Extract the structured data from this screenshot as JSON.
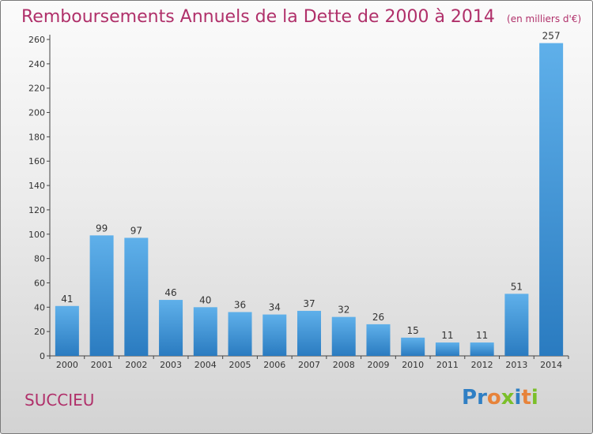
{
  "title": "Remboursements Annuels de la Dette de 2000 à 2014",
  "unit": "(en milliers d'€)",
  "commune": "SUCCIEU",
  "logo": {
    "letters": [
      "P",
      "r",
      "o",
      "x",
      "i",
      "t",
      "i"
    ]
  },
  "colors": {
    "title": "#b0306a",
    "bar_light": "#5fb0ea",
    "bar_dark": "#2a7bc0"
  },
  "chart_data": {
    "type": "bar",
    "title": "Remboursements Annuels de la Dette de 2000 à 2014",
    "xlabel": "",
    "ylabel": "",
    "categories": [
      "2000",
      "2001",
      "2002",
      "2003",
      "2004",
      "2005",
      "2006",
      "2007",
      "2008",
      "2009",
      "2010",
      "2011",
      "2012",
      "2013",
      "2014"
    ],
    "values": [
      41,
      99,
      97,
      46,
      40,
      36,
      34,
      37,
      32,
      26,
      15,
      11,
      11,
      51,
      257
    ],
    "ylim": [
      0,
      260
    ],
    "yticks": [
      0,
      20,
      40,
      60,
      80,
      100,
      120,
      140,
      160,
      180,
      200,
      220,
      240,
      260
    ],
    "grid": false,
    "data_labels": true
  }
}
